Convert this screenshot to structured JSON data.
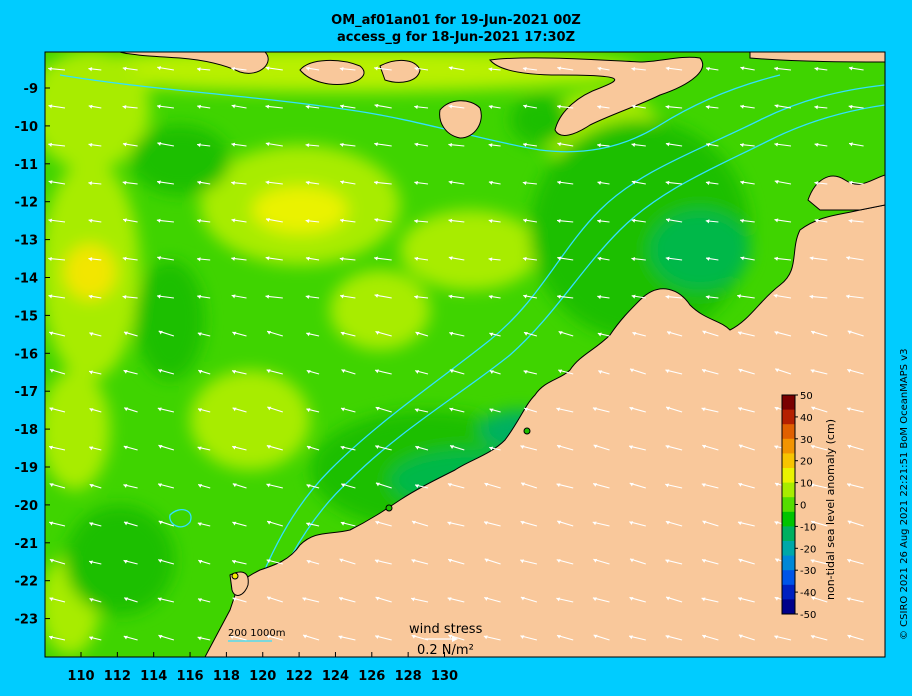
{
  "title_line1": "OM_af01an01 for 19-Jun-2021 00Z",
  "title_line2": "access_g for 18-Jun-2021 17:30Z",
  "credit": "© CSIRO 2021  26 Aug 2021 22:21:51 BoM OceanMAPS v3",
  "colorbar": {
    "title": "non-tidal sea level anomaly (cm)",
    "ticks": [
      "50",
      "40",
      "30",
      "20",
      "10",
      "0",
      "-10",
      "-20",
      "-30",
      "-40",
      "-50"
    ],
    "colors": [
      "#7a0000",
      "#b52000",
      "#e06000",
      "#f29400",
      "#f7c400",
      "#eaf200",
      "#a8ec00",
      "#55dd00",
      "#00c400",
      "#00b060",
      "#00a8a8",
      "#0088d8",
      "#0055e8",
      "#0020c0",
      "#00008a"
    ]
  },
  "axes": {
    "lat_ticks": [
      "-9",
      "-10",
      "-11",
      "-12",
      "-13",
      "-14",
      "-15",
      "-16",
      "-17",
      "-18",
      "-19",
      "-20",
      "-21",
      "-22",
      "-23"
    ],
    "lon_ticks": [
      "110",
      "112",
      "114",
      "116",
      "118",
      "120",
      "122",
      "124",
      "126",
      "128",
      "130"
    ]
  },
  "legend": {
    "wind_label": "wind stress",
    "wind_unit": "0.2 N/m²",
    "depth_label": "200  1000m"
  },
  "colors": {
    "land": "#f9c89b",
    "coast": "#000000",
    "isobath": "#33e0ff",
    "arrow": "#ffffff",
    "background": "#00ccff"
  }
}
